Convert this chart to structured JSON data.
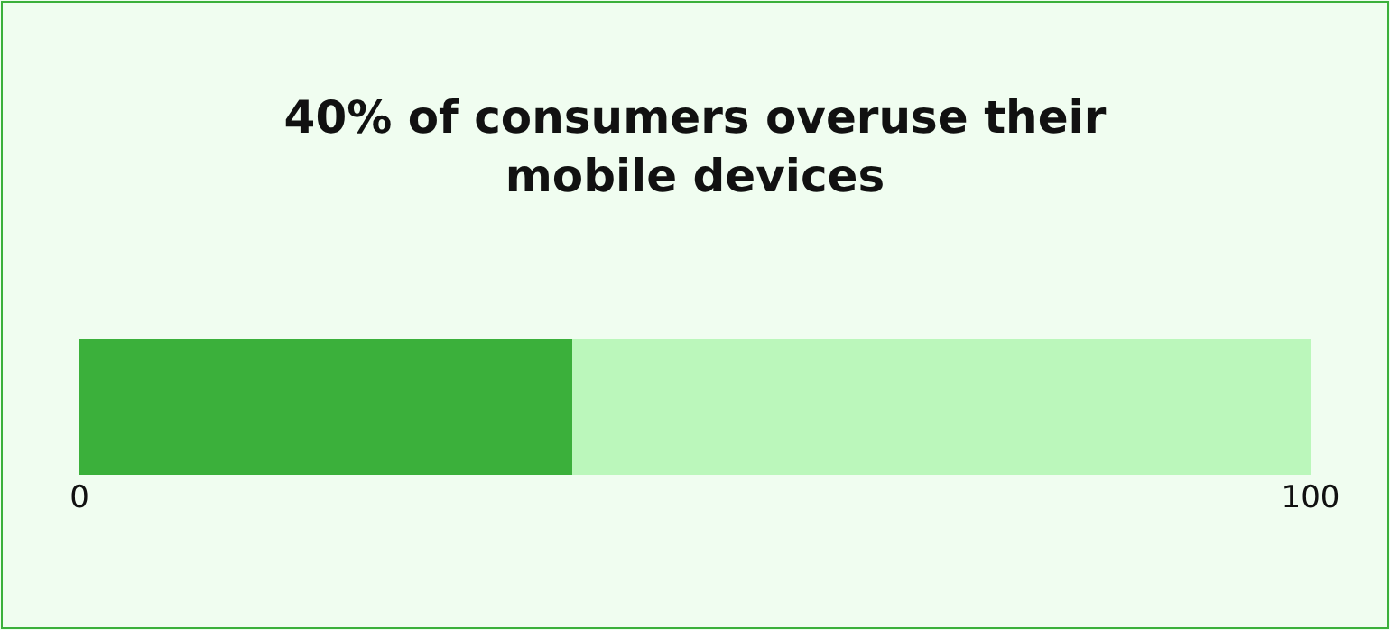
{
  "chart_data": {
    "type": "bar",
    "orientation": "horizontal",
    "stacked": true,
    "title": "40% of consumers overuse their mobile devices",
    "categories": [
      null
    ],
    "series": [
      {
        "color": "#3bb03b",
        "values": [
          40
        ]
      },
      {
        "color": "#bbf7bb",
        "values": [
          60
        ]
      }
    ],
    "xlim": [
      0,
      100
    ],
    "xticks": [
      0,
      100
    ],
    "tick_labels": "x"
  }
}
